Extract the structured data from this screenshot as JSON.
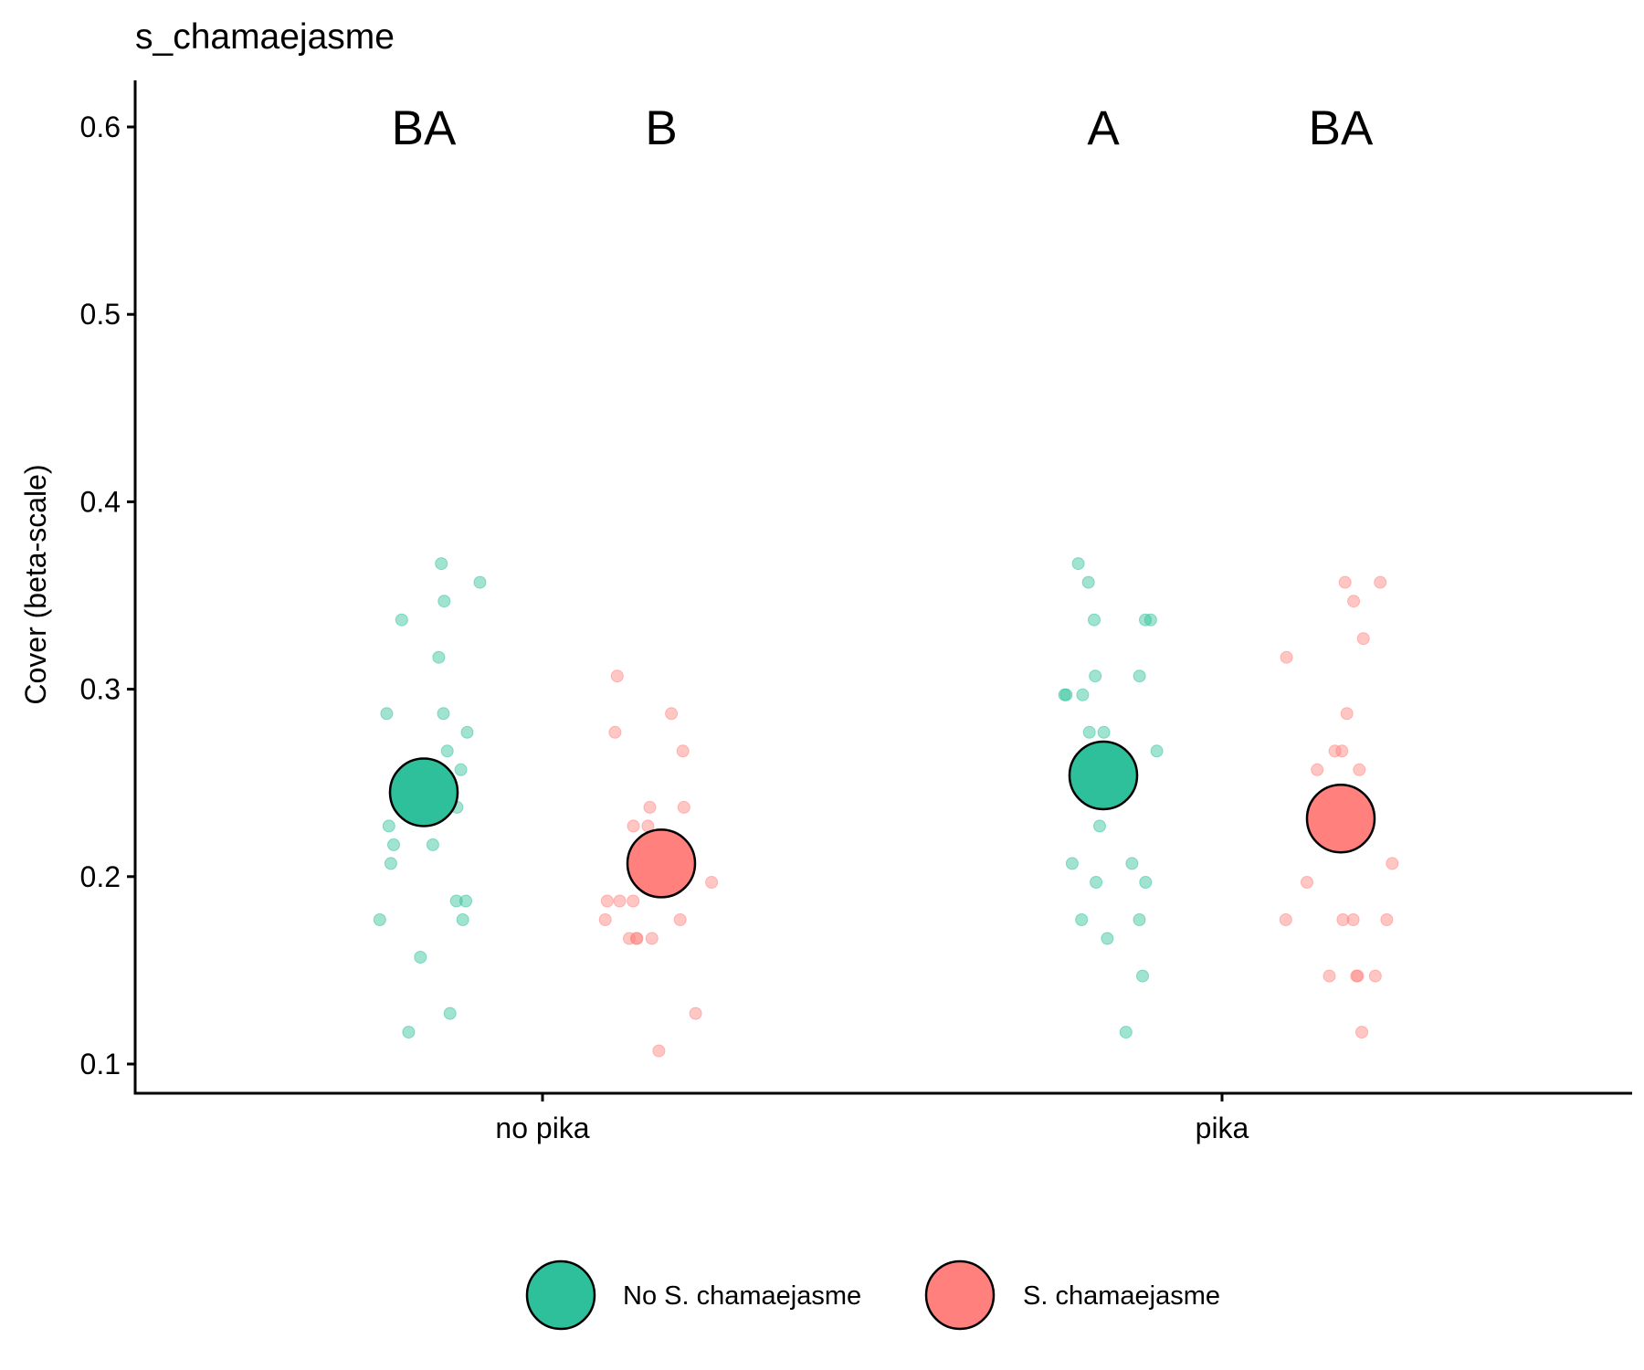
{
  "colors": {
    "no_s": "#2EC09A",
    "s": "#FF807C",
    "axis": "#000000",
    "background": "#ffffff"
  },
  "chart_data": {
    "type": "scatter",
    "title": "s_chamaejasme",
    "xlabel": "",
    "ylabel": "Cover (beta-scale)",
    "categories": [
      "no pika",
      "pika"
    ],
    "ylim": [
      0.085,
      0.625
    ],
    "yticks": [
      0.1,
      0.2,
      0.3,
      0.4,
      0.5,
      0.6
    ],
    "ytick_labels": [
      "0.1",
      "0.2",
      "0.3",
      "0.4",
      "0.5",
      "0.6"
    ],
    "grid": false,
    "legend_position": "bottom",
    "legend": [
      {
        "label": "No S. chamaejasme",
        "color_key": "no_s"
      },
      {
        "label": "S. chamaejasme",
        "color_key": "s"
      }
    ],
    "series": [
      {
        "name": "No S. chamaejasme",
        "color_key": "no_s",
        "means": [
          0.245,
          0.254
        ],
        "letters": [
          "BA",
          "A"
        ],
        "points": [
          [
            0.367,
            0.337,
            0.317,
            0.357,
            0.347,
            0.287,
            0.287,
            0.277,
            0.267,
            0.257,
            0.247,
            0.247,
            0.237,
            0.227,
            0.217,
            0.217,
            0.207,
            0.187,
            0.187,
            0.177,
            0.177,
            0.157,
            0.127,
            0.117
          ],
          [
            0.367,
            0.357,
            0.337,
            0.337,
            0.337,
            0.307,
            0.307,
            0.297,
            0.297,
            0.297,
            0.277,
            0.277,
            0.267,
            0.227,
            0.207,
            0.207,
            0.197,
            0.197,
            0.177,
            0.177,
            0.167,
            0.147,
            0.117
          ]
        ]
      },
      {
        "name": "S. chamaejasme",
        "color_key": "s",
        "means": [
          0.207,
          0.231
        ],
        "letters": [
          "B",
          "BA"
        ],
        "points": [
          [
            0.307,
            0.287,
            0.277,
            0.267,
            0.237,
            0.237,
            0.227,
            0.227,
            0.217,
            0.217,
            0.197,
            0.197,
            0.187,
            0.187,
            0.187,
            0.177,
            0.177,
            0.167,
            0.167,
            0.167,
            0.167,
            0.127,
            0.107
          ],
          [
            0.357,
            0.357,
            0.347,
            0.327,
            0.317,
            0.287,
            0.267,
            0.267,
            0.257,
            0.257,
            0.217,
            0.207,
            0.197,
            0.177,
            0.177,
            0.177,
            0.177,
            0.147,
            0.147,
            0.147,
            0.147,
            0.117
          ]
        ]
      }
    ]
  }
}
